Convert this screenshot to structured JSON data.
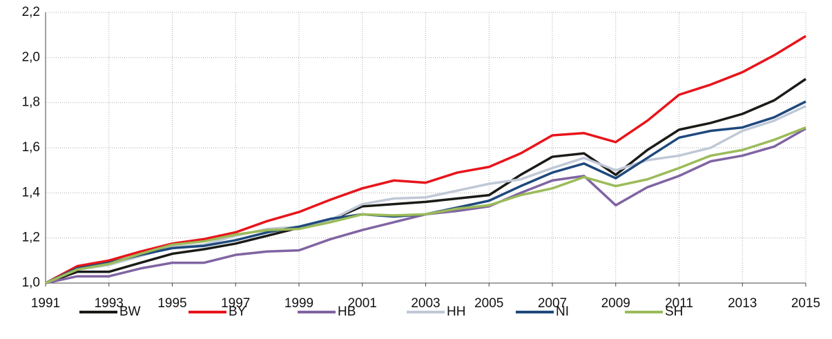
{
  "chart_data": {
    "type": "line",
    "x": [
      1991,
      1992,
      1993,
      1994,
      1995,
      1996,
      1997,
      1998,
      1999,
      2000,
      2001,
      2002,
      2003,
      2004,
      2005,
      2006,
      2007,
      2008,
      2009,
      2010,
      2011,
      2012,
      2013,
      2014,
      2015
    ],
    "series": [
      {
        "name": "BW",
        "color": "#1a1a17",
        "values": [
          1.0,
          1.05,
          1.05,
          1.09,
          1.13,
          1.15,
          1.175,
          1.21,
          1.245,
          1.28,
          1.34,
          1.35,
          1.36,
          1.375,
          1.39,
          1.48,
          1.56,
          1.575,
          1.48,
          1.59,
          1.68,
          1.71,
          1.75,
          1.81,
          1.905
        ]
      },
      {
        "name": "BY",
        "color": "#e8141b",
        "values": [
          1.0,
          1.075,
          1.1,
          1.14,
          1.175,
          1.195,
          1.225,
          1.275,
          1.315,
          1.37,
          1.42,
          1.455,
          1.445,
          1.49,
          1.515,
          1.575,
          1.655,
          1.665,
          1.625,
          1.72,
          1.835,
          1.88,
          1.935,
          2.01,
          2.095
        ]
      },
      {
        "name": "HB",
        "color": "#8064a2",
        "values": [
          1.0,
          1.03,
          1.03,
          1.065,
          1.09,
          1.09,
          1.125,
          1.14,
          1.145,
          1.195,
          1.235,
          1.27,
          1.305,
          1.32,
          1.34,
          1.4,
          1.455,
          1.475,
          1.345,
          1.425,
          1.475,
          1.54,
          1.565,
          1.605,
          1.685
        ]
      },
      {
        "name": "HH",
        "color": "#c0c8d6",
        "values": [
          1.0,
          1.06,
          1.08,
          1.12,
          1.16,
          1.17,
          1.21,
          1.24,
          1.25,
          1.28,
          1.35,
          1.375,
          1.38,
          1.41,
          1.44,
          1.46,
          1.51,
          1.555,
          1.5,
          1.545,
          1.565,
          1.6,
          1.675,
          1.72,
          1.785
        ]
      },
      {
        "name": "NI",
        "color": "#1f497d",
        "values": [
          1.0,
          1.065,
          1.09,
          1.125,
          1.155,
          1.165,
          1.19,
          1.225,
          1.25,
          1.285,
          1.305,
          1.295,
          1.305,
          1.335,
          1.365,
          1.43,
          1.49,
          1.53,
          1.465,
          1.555,
          1.645,
          1.675,
          1.69,
          1.735,
          1.805
        ]
      },
      {
        "name": "SH",
        "color": "#9bbb59",
        "values": [
          1.0,
          1.06,
          1.085,
          1.13,
          1.17,
          1.185,
          1.215,
          1.235,
          1.24,
          1.27,
          1.305,
          1.3,
          1.305,
          1.33,
          1.345,
          1.39,
          1.42,
          1.47,
          1.43,
          1.46,
          1.51,
          1.565,
          1.59,
          1.635,
          1.69
        ]
      }
    ],
    "xlim": [
      1991,
      2015
    ],
    "xticks": [
      1991,
      1993,
      1995,
      1997,
      1999,
      2001,
      2003,
      2005,
      2007,
      2009,
      2011,
      2013,
      2015
    ],
    "ylim": [
      1.0,
      2.2
    ],
    "yticks": [
      {
        "value": 1.0,
        "label": "1,0"
      },
      {
        "value": 1.2,
        "label": "1,2"
      },
      {
        "value": 1.4,
        "label": "1,4"
      },
      {
        "value": 1.6,
        "label": "1,6"
      },
      {
        "value": 1.8,
        "label": "1,8"
      },
      {
        "value": 2.0,
        "label": "2,0"
      },
      {
        "value": 2.2,
        "label": "2,2"
      }
    ],
    "grid": true,
    "legend": "bottom"
  }
}
